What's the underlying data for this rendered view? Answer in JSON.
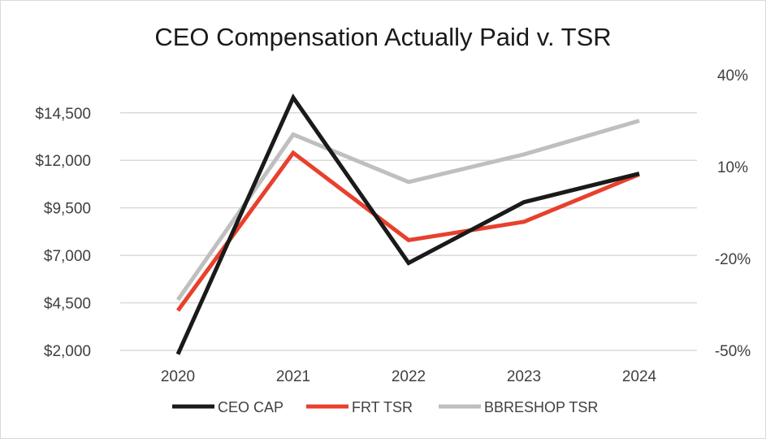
{
  "chart_data": {
    "type": "line",
    "title": "CEO Compensation Actually Paid v. TSR",
    "categories": [
      "2020",
      "2021",
      "2022",
      "2023",
      "2024"
    ],
    "left_axis": {
      "ylim": [
        2000,
        16500
      ],
      "ticks": [
        2000,
        4500,
        7000,
        9500,
        12000,
        14500
      ],
      "tick_labels": [
        "$2,000",
        "$4,500",
        "$7,000",
        "$9,500",
        "$12,000",
        "$14,500"
      ]
    },
    "right_axis": {
      "ylim": [
        -50,
        40
      ],
      "ticks": [
        -50,
        -20,
        10,
        40
      ],
      "tick_labels": [
        "-50%",
        "-20%",
        "10%",
        "40%"
      ]
    },
    "grid": true,
    "legend_position": "bottom",
    "series": [
      {
        "name": "CEO CAP",
        "axis": "left",
        "color": "#1a1a1a",
        "values": [
          1800,
          15300,
          6600,
          9800,
          11300
        ]
      },
      {
        "name": "FRT TSR",
        "axis": "right",
        "color": "#e8402d",
        "values": [
          -37,
          14.5,
          -14,
          -8,
          7.5
        ]
      },
      {
        "name": "BBRESHOP TSR",
        "axis": "right",
        "color": "#bfbfbf",
        "values": [
          -33.5,
          20.5,
          5,
          14,
          25
        ]
      }
    ]
  }
}
